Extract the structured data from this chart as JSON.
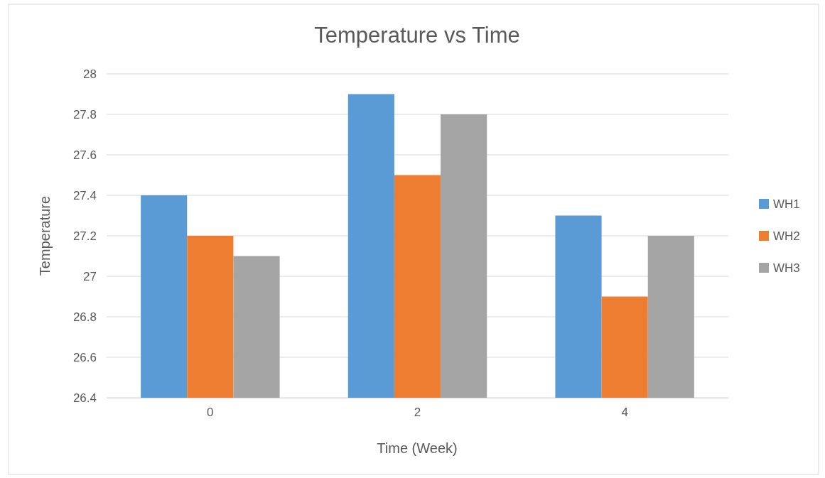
{
  "chart_data": {
    "type": "bar",
    "title": "Temperature vs Time",
    "xlabel": "Time (Week)",
    "ylabel": "Temperature",
    "categories": [
      "0",
      "2",
      "4"
    ],
    "series": [
      {
        "name": "WH1",
        "color": "#5b9bd5",
        "values": [
          27.4,
          27.9,
          27.3
        ]
      },
      {
        "name": "WH2",
        "color": "#ed7d31",
        "values": [
          27.2,
          27.5,
          26.9
        ]
      },
      {
        "name": "WH3",
        "color": "#a5a5a5",
        "values": [
          27.1,
          27.8,
          27.2
        ]
      }
    ],
    "ylim": [
      26.4,
      28
    ],
    "yticks": [
      {
        "value": 26.4,
        "label": "26.4"
      },
      {
        "value": 26.6,
        "label": "26.6"
      },
      {
        "value": 26.8,
        "label": "26.8"
      },
      {
        "value": 27,
        "label": "27"
      },
      {
        "value": 27.2,
        "label": "27.2"
      },
      {
        "value": 27.4,
        "label": "27.4"
      },
      {
        "value": 27.6,
        "label": "27.6"
      },
      {
        "value": 27.8,
        "label": "27.8"
      },
      {
        "value": 28,
        "label": "28"
      }
    ],
    "grid": "y",
    "legend": "right"
  }
}
